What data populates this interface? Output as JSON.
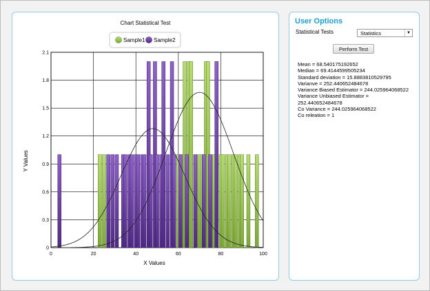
{
  "chart_panel": {
    "title": "Chart Statistical Test"
  },
  "chart_data": {
    "type": "bar",
    "title": "Chart Statistical Test",
    "xlabel": "X Values",
    "ylabel": "Y Values",
    "xlim": [
      0,
      100
    ],
    "ylim": [
      0,
      2.1
    ],
    "x_ticks": [
      "0",
      "20",
      "40",
      "60",
      "80",
      "100"
    ],
    "y_ticks": [
      "0",
      "0.3",
      "0.6",
      "0.9",
      "1.2",
      "1.5",
      "1.8",
      "2.1"
    ],
    "legend_position": "top-center",
    "grid": true,
    "series": [
      {
        "name": "Sample1",
        "color": "#9bc74a",
        "x": [
          23,
          25,
          60,
          62,
          63,
          65,
          66,
          69,
          70,
          71,
          73,
          74,
          76,
          77,
          78,
          80,
          81,
          83,
          84,
          86,
          87,
          89,
          90,
          93,
          97
        ],
        "values": [
          1,
          1,
          1,
          1,
          2,
          2,
          2,
          1,
          1,
          1,
          2,
          2,
          1,
          1,
          2,
          1,
          1,
          1,
          1,
          1,
          1,
          1,
          1,
          1,
          1
        ]
      },
      {
        "name": "Sample2",
        "color": "#6a3fa0",
        "x": [
          4,
          27,
          29,
          31,
          34,
          35,
          37,
          38,
          40,
          41,
          43,
          44,
          46,
          47,
          49,
          50,
          52,
          53,
          55,
          57,
          58,
          61,
          64,
          68,
          72,
          75,
          78
        ],
        "values": [
          1,
          1,
          1,
          1,
          1,
          1,
          1,
          1,
          1,
          1,
          1,
          1,
          2,
          1,
          2,
          1,
          1,
          2,
          1,
          2,
          1,
          1,
          1,
          1,
          1,
          1,
          2
        ]
      }
    ],
    "curves": [
      {
        "name": "Sample1 normal curve",
        "mean": 70,
        "sd": 16,
        "peak": 1.67
      },
      {
        "name": "Sample2 normal curve",
        "mean": 48,
        "sd": 15,
        "peak": 1.28
      }
    ]
  },
  "options_panel": {
    "title": "User Options",
    "statistical_tests_label": "Statistical Tests",
    "select_value": "Statistics",
    "perform_button": "Perform Test",
    "results": [
      "Mean = 68.540175192652",
      "Median = 69.4144599505234",
      "Standard deviation = 15.8883810529795",
      "Varianve = 252.440652484678",
      "Variance Biased Estimator = 244.025964068522",
      "Variance Unbiased Estimator =",
      "252.440652484678",
      "Co Variance = 244.025964068522",
      "Co releation = 1"
    ]
  }
}
